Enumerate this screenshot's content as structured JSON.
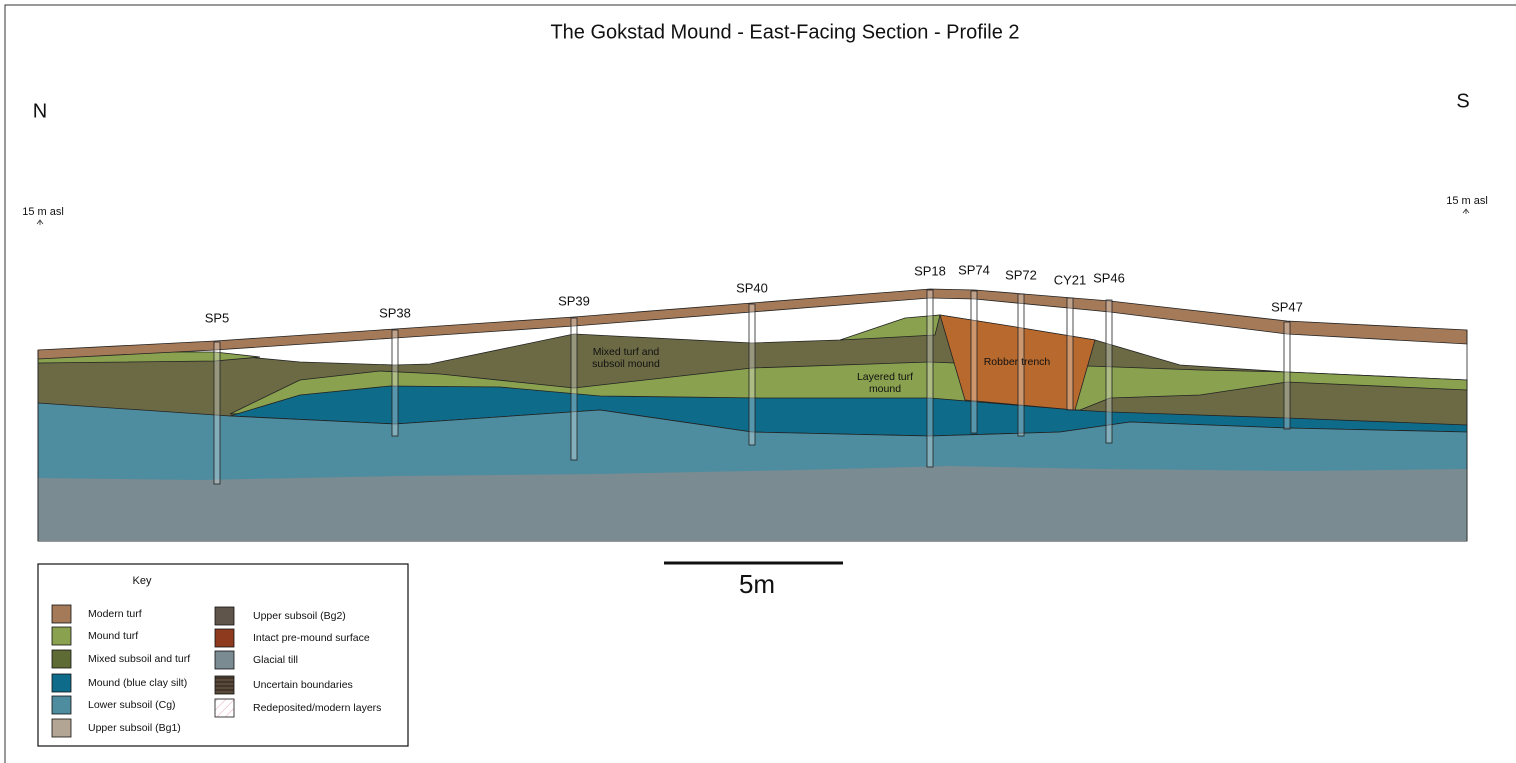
{
  "title": "The Gokstad Mound - East-Facing Section - Profile 2",
  "orientation": {
    "left": "N",
    "right": "S"
  },
  "datum": {
    "left": "15 m asl",
    "right": "15 m asl"
  },
  "sample_points": [
    "SP5",
    "SP38",
    "SP39",
    "SP40",
    "SP18",
    "SP74",
    "SP72",
    "CY21",
    "SP46",
    "SP47"
  ],
  "layer_labels": [
    {
      "lines": [
        "Mixed turf and",
        "subsoil mound"
      ]
    },
    {
      "lines": [
        "Layered turf",
        "mound"
      ]
    },
    {
      "lines": [
        "Robber trench"
      ]
    }
  ],
  "scale_bar": "5m",
  "key": {
    "title": "Key",
    "items": [
      {
        "label": "Modern turf",
        "color": "#a57a58"
      },
      {
        "label": "Mound turf",
        "color": "#8aa14f"
      },
      {
        "label": "Mixed subsoil and turf",
        "color": "#5e6b34"
      },
      {
        "label": "Mound (blue clay silt)",
        "color": "#0e6b8a"
      },
      {
        "label": "Lower subsoil (Cg)",
        "color": "#4e8ca0"
      },
      {
        "label": "Upper subsoil (Bg1)",
        "color": "#b3a593"
      },
      {
        "label": "Upper subsoil (Bg2)",
        "color": "#5f554a"
      },
      {
        "label": "Intact pre-mound surface",
        "color": "#8e3a1f"
      },
      {
        "label": "Glacial till",
        "color": "#7a8b91"
      },
      {
        "label": "Uncertain boundaries",
        "color": "#5a4a3a"
      },
      {
        "label": "Redeposited/modern layers",
        "color": "#ffffff"
      }
    ]
  }
}
